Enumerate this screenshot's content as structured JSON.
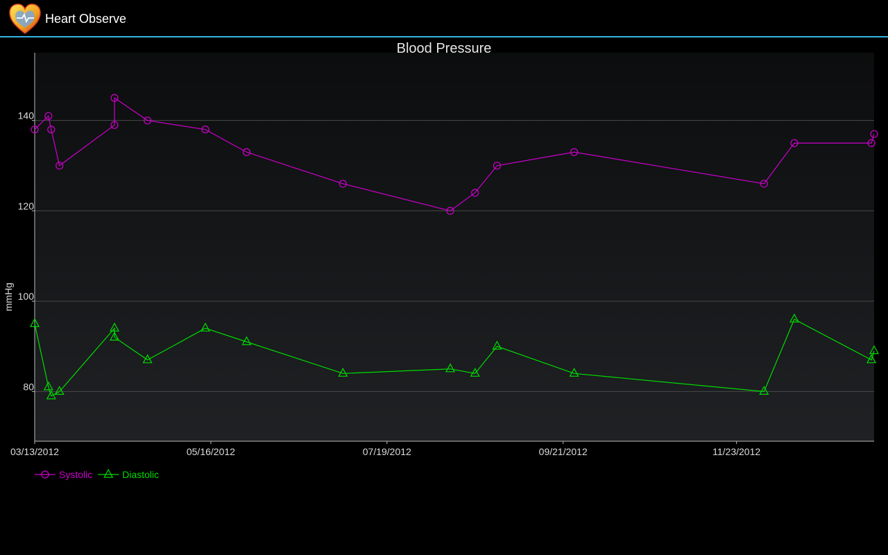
{
  "app": {
    "title": "Heart Observe",
    "icon": "heart-logo-icon"
  },
  "chart_data": {
    "type": "line",
    "title": "Blood Pressure",
    "ylabel": "mmHg",
    "xlabel": "",
    "ylim": [
      69,
      155
    ],
    "xlim": [
      "2012-03-13",
      "2013-01-12"
    ],
    "yticks": [
      80,
      100,
      120,
      140
    ],
    "xticks": [
      "03/13/2012",
      "05/16/2012",
      "07/19/2012",
      "09/21/2012",
      "11/23/2012"
    ],
    "grid": true,
    "legend": "bottom-left",
    "series": [
      {
        "name": "Systolic",
        "color": "#cc00cc",
        "marker": "circle",
        "points": [
          [
            "2012-03-13",
            138
          ],
          [
            "2012-03-18",
            141
          ],
          [
            "2012-03-19",
            138
          ],
          [
            "2012-03-22",
            130
          ],
          [
            "2012-04-11",
            139
          ],
          [
            "2012-04-11",
            145
          ],
          [
            "2012-04-23",
            140
          ],
          [
            "2012-05-14",
            138
          ],
          [
            "2012-05-29",
            133
          ],
          [
            "2012-07-03",
            126
          ],
          [
            "2012-08-11",
            120
          ],
          [
            "2012-08-20",
            124
          ],
          [
            "2012-08-28",
            130
          ],
          [
            "2012-09-25",
            133
          ],
          [
            "2012-12-03",
            126
          ],
          [
            "2012-12-14",
            135
          ],
          [
            "2013-01-11",
            135
          ],
          [
            "2013-01-12",
            137
          ]
        ]
      },
      {
        "name": "Diastolic",
        "color": "#00dd00",
        "marker": "triangle",
        "points": [
          [
            "2012-03-13",
            95
          ],
          [
            "2012-03-18",
            81
          ],
          [
            "2012-03-19",
            79
          ],
          [
            "2012-03-22",
            80
          ],
          [
            "2012-04-11",
            94
          ],
          [
            "2012-04-11",
            92
          ],
          [
            "2012-04-23",
            87
          ],
          [
            "2012-05-14",
            94
          ],
          [
            "2012-05-29",
            91
          ],
          [
            "2012-07-03",
            84
          ],
          [
            "2012-08-11",
            85
          ],
          [
            "2012-08-20",
            84
          ],
          [
            "2012-08-28",
            90
          ],
          [
            "2012-09-25",
            84
          ],
          [
            "2012-12-03",
            80
          ],
          [
            "2012-12-14",
            96
          ],
          [
            "2013-01-11",
            87
          ],
          [
            "2013-01-12",
            89
          ]
        ]
      }
    ]
  }
}
